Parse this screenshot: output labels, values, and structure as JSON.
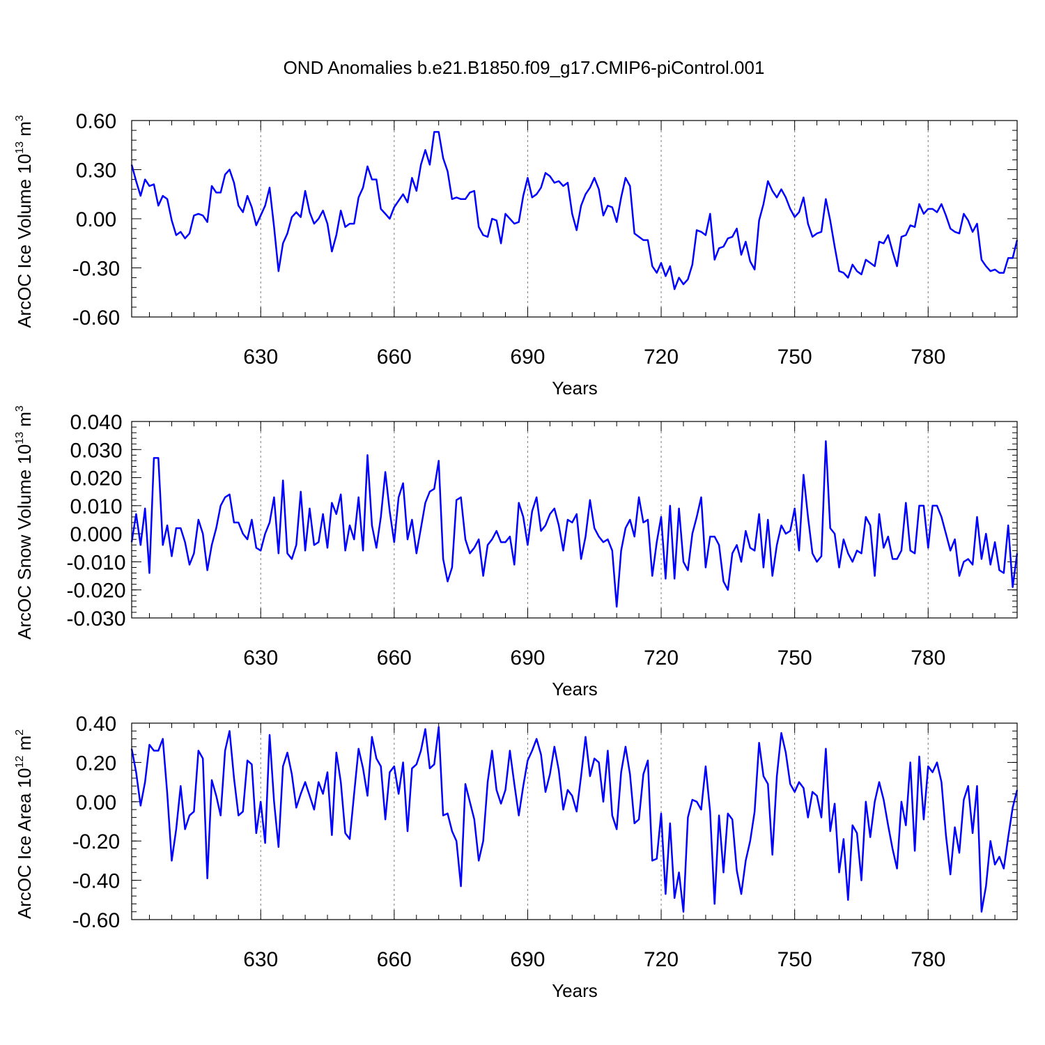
{
  "title": "OND Anomalies b.e21.B1850.f09_g17.CMIP6-piControl.001",
  "colors": {
    "line": "#0000ff",
    "grid": "#7a7a7a",
    "axes": "#000000"
  },
  "chart_data": [
    {
      "type": "line",
      "ylabel_main": "ArcOC Ice Volume 10",
      "ylabel_exp": "13",
      "ylabel_unit": " m",
      "ylabel_unit_exp": "3",
      "xlabel": "Years",
      "xlim": [
        601,
        800
      ],
      "ylim": [
        -0.6,
        0.6
      ],
      "y_major_ticks": [
        -0.6,
        -0.3,
        0.0,
        0.3,
        0.6
      ],
      "y_tick_labels": [
        "-0.60",
        "-0.30",
        "0.00",
        "0.30",
        "0.60"
      ],
      "y_minor_step": 0.06,
      "x_major_ticks": [
        630,
        660,
        690,
        720,
        750,
        780
      ],
      "x_tick_labels": [
        "630",
        "660",
        "690",
        "720",
        "750",
        "780"
      ],
      "grid": "vertical dashed at major x ticks",
      "x_start": 601,
      "values": [
        0.33,
        0.23,
        0.14,
        0.24,
        0.2,
        0.21,
        0.08,
        0.14,
        0.12,
        -0.01,
        -0.1,
        -0.08,
        -0.12,
        -0.09,
        0.02,
        0.03,
        0.02,
        -0.02,
        0.2,
        0.16,
        0.16,
        0.27,
        0.3,
        0.22,
        0.08,
        0.04,
        0.14,
        0.07,
        -0.04,
        0.02,
        0.08,
        0.19,
        -0.05,
        -0.32,
        -0.15,
        -0.09,
        0.01,
        0.04,
        0.01,
        0.17,
        0.04,
        -0.03,
        0.0,
        0.05,
        -0.03,
        -0.2,
        -0.1,
        0.05,
        -0.05,
        -0.03,
        -0.03,
        0.13,
        0.19,
        0.32,
        0.24,
        0.24,
        0.06,
        0.03,
        0.0,
        0.07,
        0.11,
        0.15,
        0.1,
        0.25,
        0.17,
        0.33,
        0.42,
        0.33,
        0.53,
        0.53,
        0.37,
        0.29,
        0.12,
        0.13,
        0.12,
        0.12,
        0.16,
        0.17,
        -0.05,
        -0.1,
        -0.11,
        0.0,
        -0.01,
        -0.15,
        0.03,
        0.0,
        -0.03,
        -0.02,
        0.14,
        0.25,
        0.13,
        0.15,
        0.19,
        0.28,
        0.26,
        0.22,
        0.23,
        0.2,
        0.22,
        0.03,
        -0.07,
        0.08,
        0.15,
        0.19,
        0.25,
        0.18,
        0.02,
        0.08,
        0.07,
        -0.02,
        0.13,
        0.25,
        0.2,
        -0.09,
        -0.11,
        -0.13,
        -0.13,
        -0.29,
        -0.33,
        -0.27,
        -0.35,
        -0.29,
        -0.43,
        -0.36,
        -0.4,
        -0.37,
        -0.28,
        -0.07,
        -0.08,
        -0.1,
        0.03,
        -0.25,
        -0.18,
        -0.17,
        -0.12,
        -0.11,
        -0.06,
        -0.22,
        -0.14,
        -0.26,
        -0.31,
        -0.01,
        0.09,
        0.23,
        0.17,
        0.13,
        0.18,
        0.13,
        0.06,
        0.01,
        0.04,
        0.13,
        -0.03,
        -0.11,
        -0.09,
        -0.08,
        0.12,
        -0.01,
        -0.17,
        -0.32,
        -0.33,
        -0.36,
        -0.28,
        -0.32,
        -0.34,
        -0.25,
        -0.27,
        -0.29,
        -0.14,
        -0.15,
        -0.1,
        -0.2,
        -0.29,
        -0.11,
        -0.1,
        -0.04,
        -0.05,
        0.09,
        0.03,
        0.06,
        0.06,
        0.04,
        0.09,
        0.02,
        -0.06,
        -0.08,
        -0.09,
        0.03,
        -0.01,
        -0.08,
        -0.03,
        -0.25,
        -0.29,
        -0.32,
        -0.31,
        -0.33,
        -0.33,
        -0.24,
        -0.24,
        -0.13
      ]
    },
    {
      "type": "line",
      "ylabel_main": "ArcOC Snow Volume 10",
      "ylabel_exp": "13",
      "ylabel_unit": " m",
      "ylabel_unit_exp": "3",
      "xlabel": "Years",
      "xlim": [
        601,
        800
      ],
      "ylim": [
        -0.03,
        0.04
      ],
      "y_major_ticks": [
        -0.03,
        -0.02,
        -0.01,
        0.0,
        0.01,
        0.02,
        0.03,
        0.04
      ],
      "y_tick_labels": [
        "-0.030",
        "-0.020",
        "-0.010",
        "0.000",
        "0.010",
        "0.020",
        "0.030",
        "0.040"
      ],
      "y_minor_step": 0.002,
      "x_major_ticks": [
        630,
        660,
        690,
        720,
        750,
        780
      ],
      "x_tick_labels": [
        "630",
        "660",
        "690",
        "720",
        "750",
        "780"
      ],
      "grid": "vertical dashed at major x ticks",
      "x_start": 601,
      "values": [
        -0.003,
        0.007,
        -0.004,
        0.009,
        -0.014,
        0.027,
        0.027,
        -0.004,
        0.003,
        -0.008,
        0.002,
        0.002,
        -0.003,
        -0.011,
        -0.007,
        0.005,
        0.0,
        -0.013,
        -0.004,
        0.002,
        0.01,
        0.013,
        0.014,
        0.004,
        0.004,
        0.0,
        -0.002,
        0.005,
        -0.005,
        -0.006,
        0.0,
        0.004,
        0.013,
        -0.007,
        0.019,
        -0.007,
        -0.009,
        -0.004,
        0.015,
        -0.006,
        0.009,
        -0.004,
        -0.003,
        0.007,
        -0.005,
        0.011,
        0.007,
        0.014,
        -0.006,
        0.003,
        -0.002,
        0.013,
        -0.006,
        0.028,
        0.003,
        -0.005,
        0.006,
        0.022,
        0.008,
        -0.003,
        0.013,
        0.018,
        -0.002,
        0.005,
        -0.007,
        0.002,
        0.011,
        0.015,
        0.016,
        0.026,
        -0.009,
        -0.017,
        -0.012,
        0.012,
        0.013,
        -0.002,
        -0.007,
        -0.005,
        -0.002,
        -0.015,
        -0.004,
        -0.002,
        0.001,
        -0.003,
        -0.003,
        -0.001,
        -0.011,
        0.011,
        0.006,
        -0.004,
        0.008,
        0.013,
        0.001,
        0.003,
        0.007,
        0.009,
        0.003,
        -0.006,
        0.005,
        0.004,
        0.007,
        -0.009,
        -0.001,
        0.012,
        0.002,
        -0.001,
        -0.003,
        -0.002,
        -0.006,
        -0.026,
        -0.006,
        0.002,
        0.005,
        -0.001,
        0.013,
        0.004,
        0.005,
        -0.015,
        -0.003,
        0.006,
        -0.016,
        0.01,
        -0.016,
        0.009,
        -0.01,
        -0.013,
        0.0,
        0.006,
        0.013,
        -0.012,
        -0.001,
        -0.001,
        -0.004,
        -0.017,
        -0.02,
        -0.007,
        -0.004,
        -0.01,
        0.001,
        -0.005,
        -0.006,
        0.007,
        -0.012,
        0.005,
        -0.015,
        -0.004,
        0.003,
        0.0,
        0.001,
        0.009,
        -0.006,
        0.021,
        0.006,
        -0.007,
        -0.01,
        -0.008,
        0.033,
        0.002,
        0.0,
        -0.012,
        -0.002,
        -0.007,
        -0.01,
        -0.006,
        -0.007,
        0.006,
        0.003,
        -0.015,
        0.007,
        -0.005,
        -0.001,
        -0.009,
        -0.009,
        -0.006,
        0.011,
        -0.006,
        -0.007,
        0.01,
        0.01,
        -0.005,
        0.01,
        0.01,
        0.006,
        0.0,
        -0.006,
        -0.002,
        -0.015,
        -0.01,
        -0.009,
        -0.011,
        0.006,
        -0.009,
        0.0,
        -0.011,
        -0.003,
        -0.013,
        -0.014,
        0.003,
        -0.019,
        -0.007
      ]
    },
    {
      "type": "line",
      "ylabel_main": "ArcOC Ice Area 10",
      "ylabel_exp": "12",
      "ylabel_unit": " m",
      "ylabel_unit_exp": "2",
      "xlabel": "Years",
      "xlim": [
        601,
        800
      ],
      "ylim": [
        -0.6,
        0.4
      ],
      "y_major_ticks": [
        -0.6,
        -0.4,
        -0.2,
        0.0,
        0.2,
        0.4
      ],
      "y_tick_labels": [
        "-0.60",
        "-0.40",
        "-0.20",
        "0.00",
        "0.20",
        "0.40"
      ],
      "y_minor_step": 0.04,
      "x_major_ticks": [
        630,
        660,
        690,
        720,
        750,
        780
      ],
      "x_tick_labels": [
        "630",
        "660",
        "690",
        "720",
        "750",
        "780"
      ],
      "grid": "vertical dashed at major x ticks",
      "x_start": 601,
      "values": [
        0.27,
        0.15,
        -0.02,
        0.1,
        0.29,
        0.26,
        0.26,
        0.32,
        0.04,
        -0.3,
        -0.14,
        0.08,
        -0.14,
        -0.07,
        -0.05,
        0.26,
        0.22,
        -0.39,
        0.11,
        0.03,
        -0.07,
        0.26,
        0.36,
        0.12,
        -0.07,
        -0.05,
        0.21,
        0.19,
        -0.16,
        0.0,
        -0.21,
        0.34,
        0.0,
        -0.23,
        0.18,
        0.25,
        0.14,
        -0.03,
        0.04,
        0.1,
        0.03,
        -0.04,
        0.1,
        0.04,
        0.15,
        -0.17,
        0.25,
        0.1,
        -0.16,
        -0.19,
        0.04,
        0.27,
        0.17,
        0.03,
        0.33,
        0.22,
        0.18,
        -0.09,
        0.15,
        0.18,
        0.04,
        0.2,
        -0.15,
        0.17,
        0.19,
        0.26,
        0.37,
        0.17,
        0.19,
        0.38,
        -0.07,
        -0.06,
        -0.15,
        -0.2,
        -0.43,
        0.09,
        0.0,
        -0.09,
        -0.3,
        -0.2,
        0.1,
        0.26,
        0.06,
        -0.01,
        0.06,
        0.26,
        0.09,
        -0.07,
        0.08,
        0.21,
        0.26,
        0.32,
        0.24,
        0.05,
        0.14,
        0.28,
        0.16,
        -0.04,
        0.06,
        0.03,
        -0.05,
        0.13,
        0.33,
        0.13,
        0.22,
        0.2,
        0.0,
        0.26,
        -0.07,
        -0.14,
        0.15,
        0.28,
        0.14,
        -0.11,
        -0.09,
        0.14,
        0.21,
        -0.3,
        -0.29,
        -0.06,
        -0.47,
        -0.11,
        -0.49,
        -0.36,
        -0.56,
        -0.08,
        0.01,
        0.0,
        -0.04,
        0.18,
        -0.05,
        -0.52,
        -0.07,
        -0.36,
        -0.06,
        -0.09,
        -0.35,
        -0.47,
        -0.3,
        -0.2,
        -0.05,
        0.3,
        0.13,
        0.09,
        -0.27,
        0.13,
        0.35,
        0.25,
        0.09,
        0.05,
        0.1,
        0.07,
        -0.08,
        0.05,
        0.03,
        -0.08,
        0.27,
        -0.15,
        -0.01,
        -0.36,
        -0.19,
        -0.5,
        -0.12,
        -0.16,
        -0.4,
        0.0,
        -0.18,
        0.0,
        0.1,
        0.01,
        -0.12,
        -0.24,
        -0.34,
        0.0,
        -0.12,
        0.2,
        -0.25,
        0.23,
        -0.09,
        0.18,
        0.15,
        0.2,
        0.1,
        -0.17,
        -0.37,
        -0.13,
        -0.26,
        0.01,
        0.08,
        -0.16,
        0.08,
        -0.56,
        -0.43,
        -0.2,
        -0.32,
        -0.28,
        -0.34,
        -0.18,
        -0.03,
        0.06
      ]
    }
  ]
}
